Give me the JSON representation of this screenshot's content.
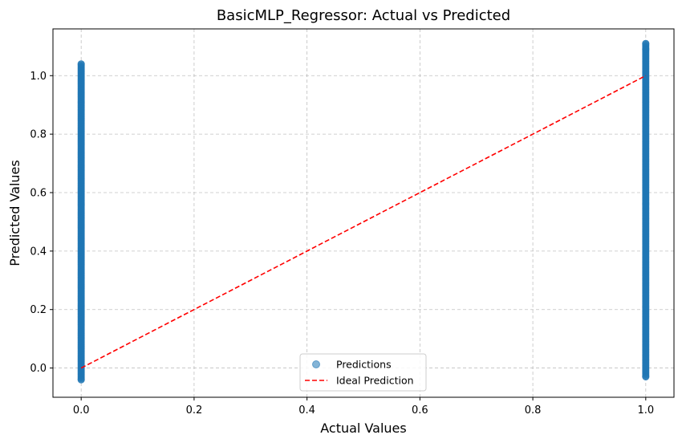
{
  "chart_data": {
    "type": "scatter",
    "title": "BasicMLP_Regressor: Actual vs Predicted",
    "xlabel": "Actual Values",
    "ylabel": "Predicted Values",
    "xlim": [
      -0.05,
      1.05
    ],
    "ylim": [
      -0.1,
      1.16
    ],
    "x_ticks": [
      0.0,
      0.2,
      0.4,
      0.6,
      0.8,
      1.0
    ],
    "x_tick_labels": [
      "0.0",
      "0.2",
      "0.4",
      "0.6",
      "0.8",
      "1.0"
    ],
    "y_ticks": [
      0.0,
      0.2,
      0.4,
      0.6,
      0.8,
      1.0
    ],
    "y_tick_labels": [
      "0.0",
      "0.2",
      "0.4",
      "0.6",
      "0.8",
      "1.0"
    ],
    "grid": true,
    "legend_position": "bottom-center",
    "series": [
      {
        "name": "Predictions",
        "kind": "scatter",
        "color": "#1f77b4",
        "alpha": 0.55,
        "groups": [
          {
            "x": 0.0,
            "y_min": -0.04,
            "y_max": 1.04,
            "outliers": [
              1.04,
              -0.04
            ]
          },
          {
            "x": 1.0,
            "y_min": -0.03,
            "y_max": 1.11,
            "outliers": [
              1.11,
              1.09,
              -0.03
            ]
          }
        ]
      },
      {
        "name": "Ideal Prediction",
        "kind": "line",
        "color": "#ff0000",
        "dash": "dashed",
        "points": [
          [
            0.0,
            0.0
          ],
          [
            1.0,
            1.0
          ]
        ]
      }
    ]
  }
}
